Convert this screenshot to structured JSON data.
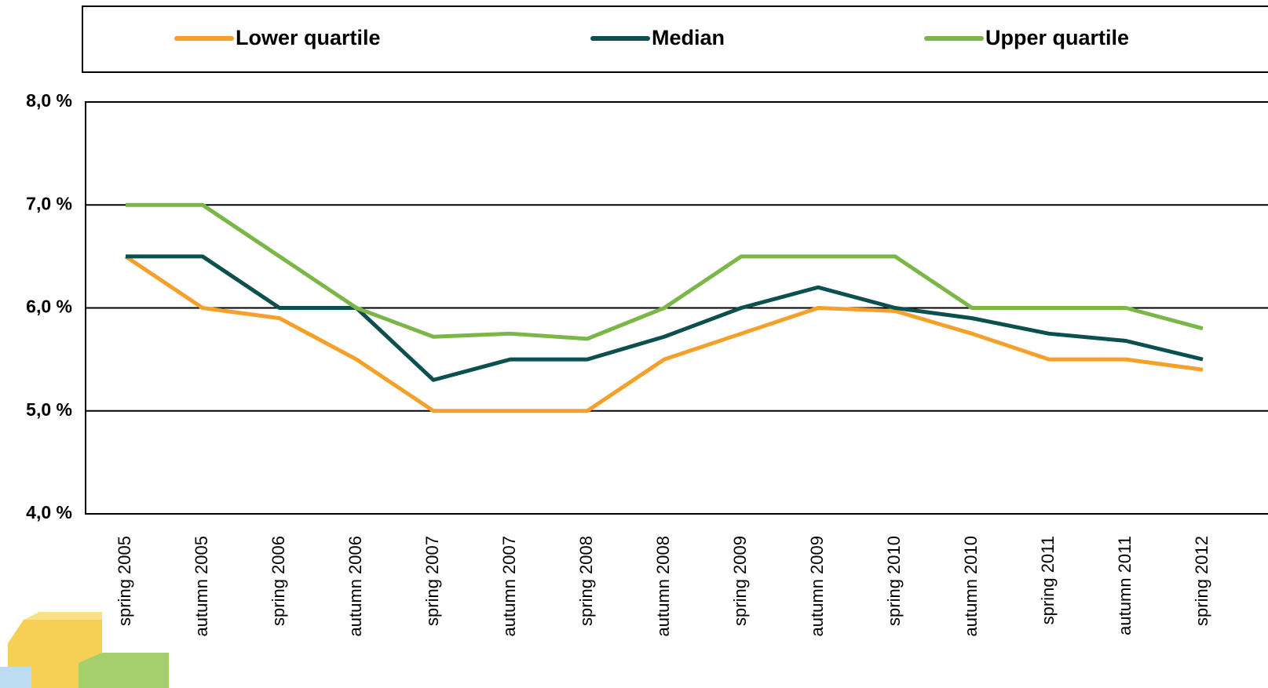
{
  "chart_data": {
    "type": "line",
    "categories": [
      "spring 2005",
      "autumn 2005",
      "spring 2006",
      "autumn 2006",
      "spring 2007",
      "autumn 2007",
      "spring 2008",
      "autumn 2008",
      "spring 2009",
      "autumn 2009",
      "spring 2010",
      "autumn 2010",
      "spring 2011",
      "autumn 2011",
      "spring 2012"
    ],
    "series": [
      {
        "name": "Lower quartile",
        "color": "#f5a02a",
        "values": [
          6.5,
          6.0,
          5.9,
          5.5,
          5.0,
          5.0,
          5.0,
          5.5,
          5.75,
          6.0,
          5.97,
          5.75,
          5.5,
          5.5,
          5.4
        ]
      },
      {
        "name": "Median",
        "color": "#0b4f4f",
        "values": [
          6.5,
          6.5,
          6.0,
          6.0,
          5.3,
          5.5,
          5.5,
          5.72,
          6.0,
          6.2,
          6.0,
          5.9,
          5.75,
          5.68,
          5.5
        ]
      },
      {
        "name": "Upper quartile",
        "color": "#7ab648",
        "values": [
          7.0,
          7.0,
          6.5,
          6.0,
          5.72,
          5.75,
          5.7,
          6.0,
          6.5,
          6.5,
          6.5,
          6.0,
          6.0,
          6.0,
          5.8
        ]
      }
    ],
    "ylim": [
      4,
      8
    ],
    "yticks": [
      {
        "value": 4,
        "label": "4,0 %"
      },
      {
        "value": 5,
        "label": "5,0 %"
      },
      {
        "value": 6,
        "label": "6,0 %"
      },
      {
        "value": 7,
        "label": "7,0 %"
      },
      {
        "value": 8,
        "label": "8,0 %"
      }
    ],
    "grid": true
  }
}
